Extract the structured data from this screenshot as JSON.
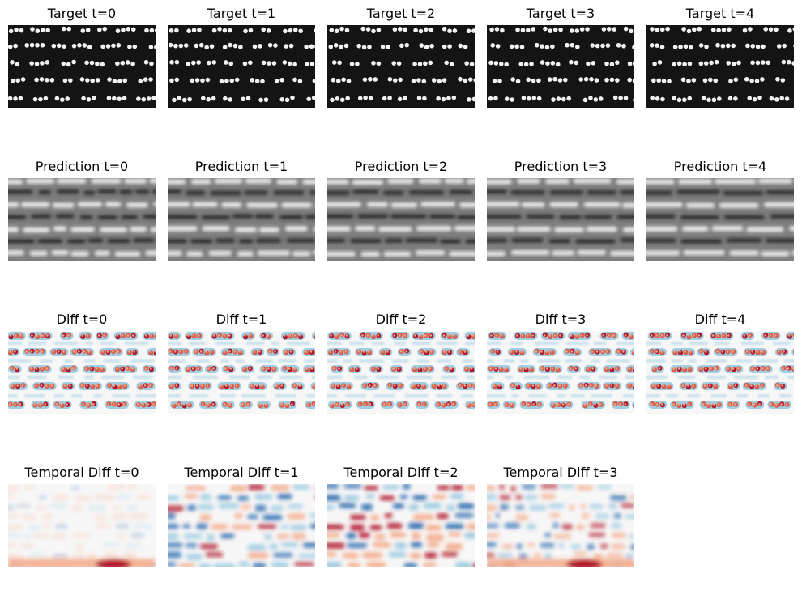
{
  "chart_data": {
    "type": "heatmap",
    "rows": [
      {
        "colormap": "gray",
        "panels": [
          {
            "title": "Target t=0",
            "t": 0
          },
          {
            "title": "Target t=1",
            "t": 1
          },
          {
            "title": "Target t=2",
            "t": 2
          },
          {
            "title": "Target t=3",
            "t": 3
          },
          {
            "title": "Target t=4",
            "t": 4
          }
        ]
      },
      {
        "colormap": "gray",
        "panels": [
          {
            "title": "Prediction t=0",
            "t": 0
          },
          {
            "title": "Prediction t=1",
            "t": 1
          },
          {
            "title": "Prediction t=2",
            "t": 2
          },
          {
            "title": "Prediction t=3",
            "t": 3
          },
          {
            "title": "Prediction t=4",
            "t": 4
          }
        ]
      },
      {
        "colormap": "RdBu_r",
        "panels": [
          {
            "title": "Diff t=0",
            "t": 0
          },
          {
            "title": "Diff t=1",
            "t": 1
          },
          {
            "title": "Diff t=2",
            "t": 2
          },
          {
            "title": "Diff t=3",
            "t": 3
          },
          {
            "title": "Diff t=4",
            "t": 4
          }
        ]
      },
      {
        "colormap": "RdBu_r",
        "panels": [
          {
            "title": "Temporal Diff t=0",
            "t": 0
          },
          {
            "title": "Temporal Diff t=1",
            "t": 1
          },
          {
            "title": "Temporal Diff t=2",
            "t": 2
          },
          {
            "title": "Temporal Diff t=3",
            "t": 3
          }
        ]
      }
    ],
    "colors": {
      "target_background": "#141414",
      "target_dot": "#f2f2f2",
      "pred_dark": "#2a2a2a",
      "pred_light": "#ececec",
      "red": "#b2182b",
      "light_red": "#f4a582",
      "white": "#f7f7f7",
      "light_blue": "#92c5de",
      "blue": "#2166ac"
    }
  }
}
